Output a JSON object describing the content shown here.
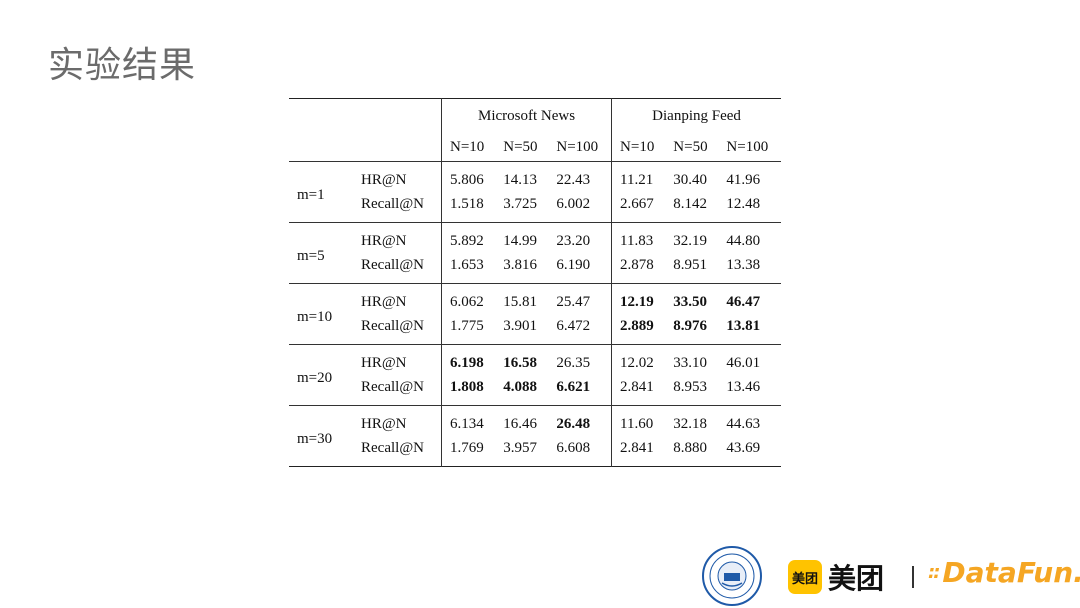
{
  "title": "实验结果",
  "table": {
    "groups": [
      "Microsoft News",
      "Dianping Feed"
    ],
    "n_headers": [
      "N=10",
      "N=50",
      "N=100",
      "N=10",
      "N=50",
      "N=100"
    ],
    "rows": [
      {
        "m": "m=1",
        "hr_label": "HR@N",
        "recall_label": "Recall@N",
        "hr": [
          "5.806",
          "14.13",
          "22.43",
          "11.21",
          "30.40",
          "41.96"
        ],
        "recall": [
          "1.518",
          "3.725",
          "6.002",
          "2.667",
          "8.142",
          "12.48"
        ]
      },
      {
        "m": "m=5",
        "hr_label": "HR@N",
        "recall_label": "Recall@N",
        "hr": [
          "5.892",
          "14.99",
          "23.20",
          "11.83",
          "32.19",
          "44.80"
        ],
        "recall": [
          "1.653",
          "3.816",
          "6.190",
          "2.878",
          "8.951",
          "13.38"
        ]
      },
      {
        "m": "m=10",
        "hr_label": "HR@N",
        "recall_label": "Recall@N",
        "hr": [
          "6.062",
          "15.81",
          "25.47",
          "12.19",
          "33.50",
          "46.47"
        ],
        "recall": [
          "1.775",
          "3.901",
          "6.472",
          "2.889",
          "8.976",
          "13.81"
        ]
      },
      {
        "m": "m=20",
        "hr_label": "HR@N",
        "recall_label": "Recall@N",
        "hr": [
          "6.198",
          "16.58",
          "26.35",
          "12.02",
          "33.10",
          "46.01"
        ],
        "recall": [
          "1.808",
          "4.088",
          "6.621",
          "2.841",
          "8.953",
          "13.46"
        ]
      },
      {
        "m": "m=30",
        "hr_label": "HR@N",
        "recall_label": "Recall@N",
        "hr": [
          "6.134",
          "16.46",
          "26.48",
          "11.60",
          "32.18",
          "44.63"
        ],
        "recall": [
          "1.769",
          "3.957",
          "6.608",
          "2.841",
          "8.880",
          "43.69"
        ]
      }
    ]
  },
  "logos": {
    "meituan_badge": "美团",
    "meituan_text": "美团",
    "datafun_text": "DataFun.",
    "datafun_dots": "::",
    "accent_yellow": "#FFC300",
    "accent_orange": "#f5a623"
  }
}
